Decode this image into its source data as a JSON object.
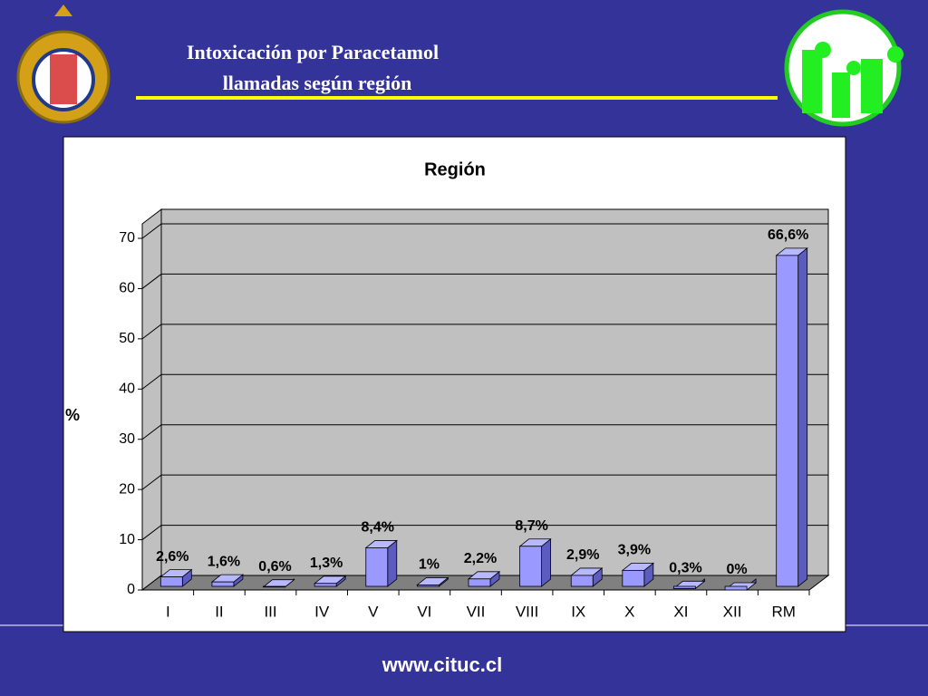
{
  "header": {
    "title_line1": "Intoxicación por Paracetamol",
    "title_line2": "llamadas según región"
  },
  "footer": {
    "url": "www.cituc.cl"
  },
  "chart_data": {
    "type": "bar",
    "title": "Región",
    "y_label": "%",
    "categories": [
      "I",
      "II",
      "III",
      "IV",
      "V",
      "VI",
      "VII",
      "VIII",
      "IX",
      "X",
      "XI",
      "XII",
      "RM"
    ],
    "values": [
      2.6,
      1.6,
      0.6,
      1.3,
      8.4,
      1,
      2.2,
      8.7,
      2.9,
      3.9,
      0.3,
      0,
      66.6
    ],
    "value_labels": [
      "2,6%",
      "1,6%",
      "0,6%",
      "1,3%",
      "8,4%",
      "1%",
      "2,2%",
      "8,7%",
      "2,9%",
      "3,9%",
      "0,3%",
      "0%",
      "66,6%"
    ],
    "color": "#9999ff",
    "ylim": [
      0,
      70
    ],
    "yticks": [
      0,
      10,
      20,
      30,
      40,
      50,
      60,
      70
    ],
    "grid": true
  }
}
